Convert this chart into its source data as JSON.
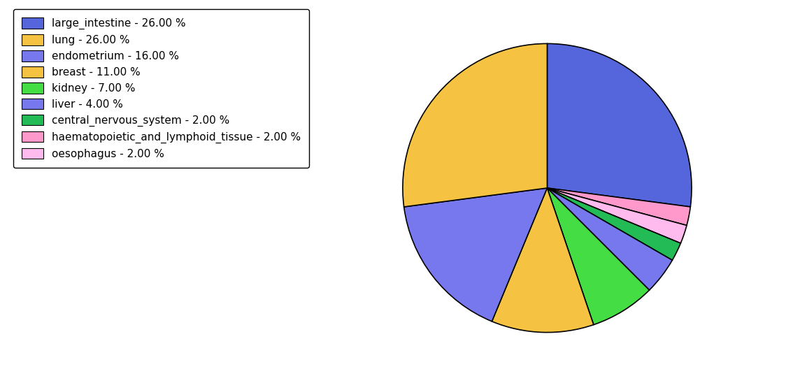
{
  "labels": [
    "large_intestine - 26.00 %",
    "lung - 26.00 %",
    "endometrium - 16.00 %",
    "breast - 11.00 %",
    "kidney - 7.00 %",
    "liver - 4.00 %",
    "central_nervous_system - 2.00 %",
    "haematopoietic_and_lymphoid_tissue - 2.00 %",
    "oesophagus - 2.00 %"
  ],
  "values": [
    26,
    26,
    16,
    11,
    7,
    4,
    2,
    2,
    2
  ],
  "pie_order_labels": [
    "large_intestine",
    "haematopoietic_and_lymphoid_tissue",
    "oesophagus",
    "central_nervous_system",
    "liver",
    "kidney",
    "breast",
    "endometrium",
    "lung"
  ],
  "pie_values": [
    26,
    2,
    2,
    2,
    4,
    7,
    11,
    16,
    26
  ],
  "pie_colors": [
    "#5566dd",
    "#ff99cc",
    "#ffbbee",
    "#22bb55",
    "#7777ee",
    "#44dd44",
    "#f5c242",
    "#7777ee",
    "#f5c242"
  ],
  "legend_colors": [
    "#5566dd",
    "#f5c242",
    "#7777ee",
    "#f5c242",
    "#44dd44",
    "#7777ee",
    "#22bb55",
    "#ff99cc",
    "#ffbbee"
  ],
  "startangle": 90,
  "figsize": [
    11.34,
    5.38
  ]
}
